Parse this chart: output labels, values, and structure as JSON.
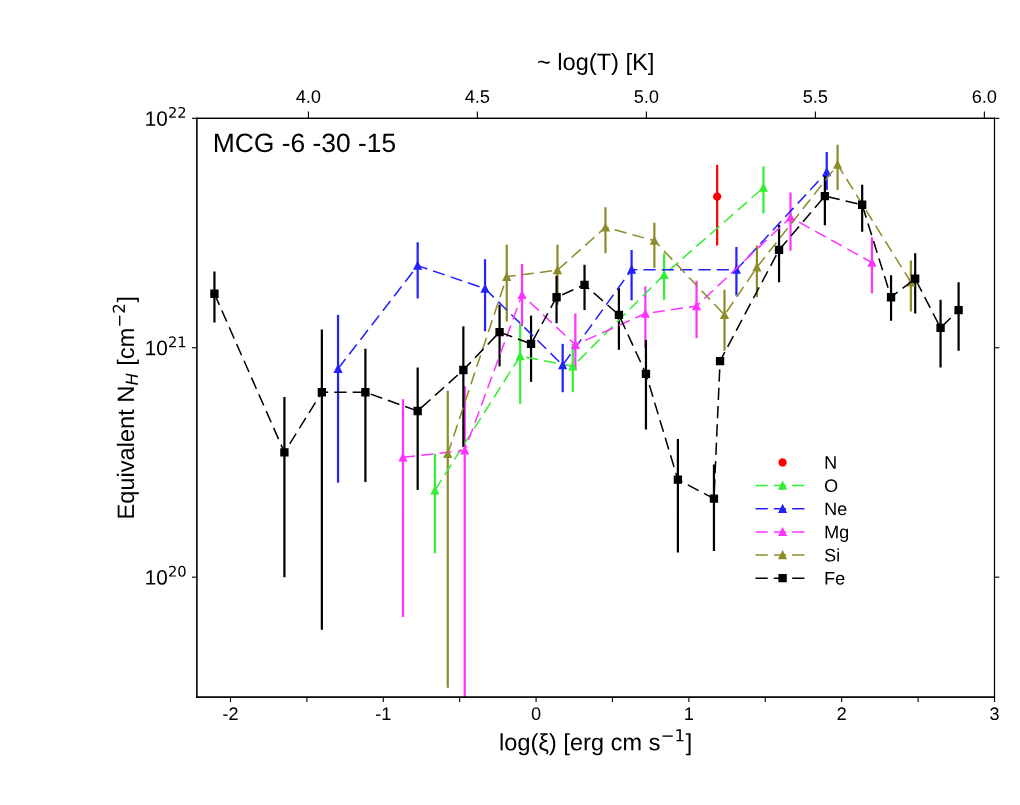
{
  "chart_data": {
    "type": "line",
    "xlabel": "log(ξ) [erg cm s$^{−1}$]",
    "ylabel": "Equivalent N$_{H}$ [cm$^{−2}$]",
    "x2label": "~ log(T) [K]",
    "annotations": [
      "MCG -6 -30 -15"
    ],
    "x2lim": [
      3.67,
      6.03
    ],
    "x2ticks": [
      {
        "value": 4.0,
        "label": "4.0"
      },
      {
        "value": 4.5,
        "label": "4.5"
      },
      {
        "value": 5.0,
        "label": "5.0"
      },
      {
        "value": 5.5,
        "label": "5.5"
      },
      {
        "value": 6.0,
        "label": "6.0"
      }
    ],
    "log": "y",
    "grid": false,
    "legend": "lower right",
    "line_style": "dashed",
    "xlim": [
      -2.22,
      3
    ],
    "xticks": [
      -2,
      {
        "value": -1.5,
        "label": null
      },
      -1,
      {
        "value": -0.5,
        "label": null
      },
      0,
      {
        "value": 0.5,
        "label": null
      },
      1,
      {
        "value": 1.5,
        "label": null
      },
      2,
      {
        "value": 2.5,
        "label": null
      },
      3
    ],
    "ylim": [
      3e+19,
      1e+22
    ],
    "yticks": [
      {
        "value": 1e+20,
        "label": "10$^{20}$"
      },
      {
        "value": 1e+21,
        "label": "10$^{21}$"
      },
      {
        "value": 1e+22,
        "label": "10$^{22}$"
      }
    ],
    "series": [
      {
        "name": "N",
        "color": "#ff0000",
        "marker": "circle",
        "x": [
          1.185
        ],
        "values": [
          4.56e+21
        ],
        "errors": [
          [
            2.79e+21,
            6.28e+21
          ]
        ]
      },
      {
        "name": "O",
        "color": "#33ee33",
        "marker": "triangle",
        "x": [
          -0.662,
          -0.104,
          0.24,
          0.838,
          1.488
        ],
        "values": [
          2.39e+20,
          9.2e+20,
          8.3e+20,
          2.08e+21,
          4.99e+21
        ],
        "errors": [
          [
            1.27e+20,
            3.45e+20
          ],
          [
            5.7e+20,
            1.28e+21
          ],
          [
            6.4e+20,
            1.04e+21
          ],
          [
            1.62e+21,
            2.58e+21
          ],
          [
            3.85e+21,
            6.17e+21
          ]
        ]
      },
      {
        "name": "Ne",
        "color": "#2222ff",
        "marker": "triangle",
        "x": [
          -1.296,
          -0.775,
          -0.334,
          0.174,
          0.625,
          1.311,
          1.902
        ],
        "values": [
          8.1e+20,
          2.28e+21,
          1.81e+21,
          8.4e+20,
          2.19e+21,
          2.19e+21,
          5.83e+21
        ],
        "errors": [
          [
            2.58e+20,
            1.39e+21
          ],
          [
            1.64e+21,
            2.88e+21
          ],
          [
            1.18e+21,
            2.43e+21
          ],
          [
            6.4e+20,
            1.04e+21
          ],
          [
            1.61e+21,
            2.67e+21
          ],
          [
            1.69e+21,
            2.75e+21
          ],
          [
            4.87e+21,
            7.13e+21
          ]
        ]
      },
      {
        "name": "Mg",
        "color": "#ff33ff",
        "marker": "triangle",
        "x": [
          -0.871,
          -0.467,
          -0.092,
          0.257,
          0.715,
          1.05,
          1.665,
          2.198
        ],
        "values": [
          3.33e+20,
          3.57e+20,
          1.7e+21,
          1.03e+21,
          1.41e+21,
          1.52e+21,
          3.7e+21,
          2.35e+21
        ],
        "errors": [
          [
            6.7e+19,
            5.97e+20
          ],
          [
            3e+19,
            6.8e+20
          ],
          [
            1.24e+21,
            2.32e+21
          ],
          [
            8e+20,
            1.41e+21
          ],
          [
            1e+21,
            1.85e+21
          ],
          [
            1.1e+21,
            1.96e+21
          ],
          [
            2.65e+21,
            4.75e+21
          ],
          [
            1.73e+21,
            3.03e+21
          ]
        ]
      },
      {
        "name": "Si",
        "color": "#8c8c2a",
        "marker": "triangle",
        "x": [
          -0.578,
          -0.192,
          0.14,
          0.454,
          0.774,
          1.233,
          1.445,
          1.973,
          2.453
        ],
        "values": [
          3.45e+20,
          2.04e+21,
          2.18e+21,
          3.35e+21,
          2.93e+21,
          1.39e+21,
          2.24e+21,
          6.28e+21,
          1.93e+21
        ],
        "errors": [
          [
            3.3e+19,
            6.5e+20
          ],
          [
            1.3e+21,
            2.81e+21
          ],
          [
            1.54e+21,
            2.81e+21
          ],
          [
            2.58e+21,
            4.1e+21
          ],
          [
            2.23e+21,
            3.51e+21
          ],
          [
            9.7e+20,
            1.79e+21
          ],
          [
            1.66e+21,
            2.79e+21
          ],
          [
            4.87e+21,
            7.67e+21
          ],
          [
            1.44e+21,
            2.4e+21
          ]
        ]
      },
      {
        "name": "Fe",
        "color": "#000000",
        "marker": "square",
        "x": [
          -2.105,
          -1.647,
          -1.402,
          -1.117,
          -0.775,
          -0.476,
          -0.239,
          -0.033,
          0.134,
          0.317,
          0.542,
          0.719,
          0.928,
          1.164,
          1.204,
          1.59,
          1.89,
          2.134,
          2.323,
          2.481,
          2.647,
          2.765
        ],
        "values": [
          1.72e+21,
          3.5e+20,
          6.4e+20,
          6.4e+20,
          5.3e+20,
          8e+20,
          1.17e+21,
          1.04e+21,
          1.66e+21,
          1.88e+21,
          1.39e+21,
          7.7e+20,
          2.66e+20,
          2.2e+20,
          8.75e+20,
          2.67e+21,
          4.58e+21,
          4.2e+21,
          1.66e+21,
          2e+21,
          1.22e+21,
          1.46e+21
        ],
        "errors": [
          [
            1.29e+21,
            2.15e+21
          ],
          [
            1e+20,
            6.1e+20
          ],
          [
            5.9e+19,
            1.2e+21
          ],
          [
            2.6e+20,
            9.9e+20
          ],
          [
            2.4e+20,
            8.2e+20
          ],
          [
            3.7e+20,
            1.24e+21
          ],
          [
            8.3e+20,
            1.54e+21
          ],
          [
            7.1e+20,
            1.38e+21
          ],
          [
            1.28e+21,
            2.06e+21
          ],
          [
            1.46e+21,
            2.3e+21
          ],
          [
            9.8e+20,
            1.82e+21
          ],
          [
            4.4e+20,
            1.08e+21
          ],
          [
            1.28e+20,
            4e+20
          ],
          [
            1.3e+20,
            3.1e+20
          ],
          null,
          [
            1.93e+21,
            3.44e+21
          ],
          [
            3.42e+21,
            5.73e+21
          ],
          [
            3.2e+21,
            5.14e+21
          ],
          [
            1.31e+21,
            2.07e+21
          ],
          [
            1.41e+21,
            2.58e+21
          ],
          [
            8.2e+20,
            1.62e+21
          ],
          [
            9.7e+20,
            1.93e+21
          ]
        ]
      }
    ]
  }
}
